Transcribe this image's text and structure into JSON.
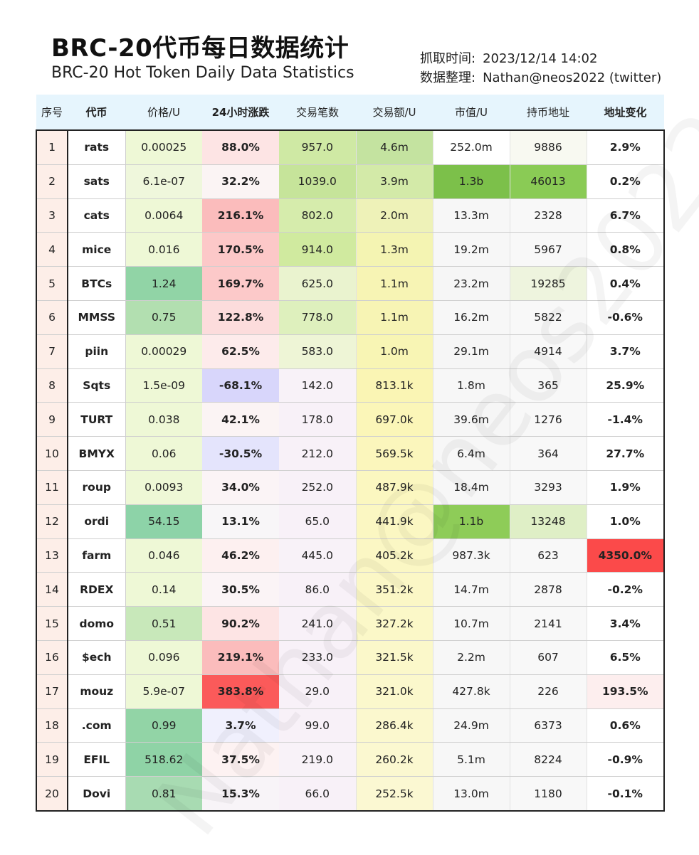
{
  "header": {
    "title_cn": "BRC-20代币每日数据统计",
    "title_en": "BRC-20 Hot Token Daily Data Statistics",
    "fetch_label": "抓取时间:",
    "fetch_time": "2023/12/14 14:02",
    "compiled_label": "数据整理:",
    "compiled_by": "Nathan@neos2022 (twitter)"
  },
  "watermark": "Nathan@neos2022",
  "chart_data": {
    "type": "table",
    "columns": [
      "序号",
      "代币",
      "价格/U",
      "24小时涨跌",
      "交易笔数",
      "交易额/U",
      "市值/U",
      "持币地址",
      "地址变化"
    ],
    "rows": [
      [
        "1",
        "rats",
        "0.00025",
        "88.0%",
        "957.0",
        "4.6m",
        "252.0m",
        "9886",
        "2.9%"
      ],
      [
        "2",
        "sats",
        "6.1e-07",
        "32.2%",
        "1039.0",
        "3.9m",
        "1.3b",
        "46013",
        "0.2%"
      ],
      [
        "3",
        "cats",
        "0.0064",
        "216.1%",
        "802.0",
        "2.0m",
        "13.3m",
        "2328",
        "6.7%"
      ],
      [
        "4",
        "mice",
        "0.016",
        "170.5%",
        "914.0",
        "1.3m",
        "19.2m",
        "5967",
        "0.8%"
      ],
      [
        "5",
        "BTCs",
        "1.24",
        "169.7%",
        "625.0",
        "1.1m",
        "23.2m",
        "19285",
        "0.4%"
      ],
      [
        "6",
        "MMSS",
        "0.75",
        "122.8%",
        "778.0",
        "1.1m",
        "16.2m",
        "5822",
        "-0.6%"
      ],
      [
        "7",
        "piin",
        "0.00029",
        "62.5%",
        "583.0",
        "1.0m",
        "29.1m",
        "4914",
        "3.7%"
      ],
      [
        "8",
        "Sqts",
        "1.5e-09",
        "-68.1%",
        "142.0",
        "813.1k",
        "1.8m",
        "365",
        "25.9%"
      ],
      [
        "9",
        "TURT",
        "0.038",
        "42.1%",
        "178.0",
        "697.0k",
        "39.6m",
        "1276",
        "-1.4%"
      ],
      [
        "10",
        "BMYX",
        "0.06",
        "-30.5%",
        "212.0",
        "569.5k",
        "6.4m",
        "364",
        "27.7%"
      ],
      [
        "11",
        "roup",
        "0.0093",
        "34.0%",
        "252.0",
        "487.9k",
        "18.4m",
        "3293",
        "1.9%"
      ],
      [
        "12",
        "ordi",
        "54.15",
        "13.1%",
        "65.0",
        "441.9k",
        "1.1b",
        "13248",
        "1.0%"
      ],
      [
        "13",
        "farm",
        "0.046",
        "46.2%",
        "445.0",
        "405.2k",
        "987.3k",
        "623",
        "4350.0%"
      ],
      [
        "14",
        "RDEX",
        "0.14",
        "30.5%",
        "86.0",
        "351.2k",
        "14.7m",
        "2878",
        "-0.2%"
      ],
      [
        "15",
        "domo",
        "0.51",
        "90.2%",
        "241.0",
        "327.2k",
        "10.7m",
        "2141",
        "3.4%"
      ],
      [
        "16",
        "$ech",
        "0.096",
        "219.1%",
        "233.0",
        "321.5k",
        "2.2m",
        "607",
        "6.5%"
      ],
      [
        "17",
        "mouz",
        "5.9e-07",
        "383.8%",
        "29.0",
        "321.0k",
        "427.8k",
        "226",
        "193.5%"
      ],
      [
        "18",
        ".com",
        "0.99",
        "3.7%",
        "99.0",
        "286.4k",
        "24.9m",
        "6373",
        "0.6%"
      ],
      [
        "19",
        "EFIL",
        "518.62",
        "37.5%",
        "219.0",
        "260.2k",
        "5.1m",
        "8224",
        "-0.9%"
      ],
      [
        "20",
        "Dovi",
        "0.81",
        "15.3%",
        "66.0",
        "252.5k",
        "13.0m",
        "1180",
        "-0.1%"
      ]
    ],
    "cell_colors": [
      [
        "#fdeee8",
        "#ffffff",
        "#eef8d6",
        "#fde4e4",
        "#cfe9a4",
        "#c4e3a0",
        "#ffffff",
        "#f8f9f1",
        "#ffffff"
      ],
      [
        "#fdeee8",
        "#ffffff",
        "#eff7dc",
        "#fbf4f4",
        "#c6e49a",
        "#d3eaa8",
        "#7cc04a",
        "#8acb55",
        "#ffffff"
      ],
      [
        "#fdeee8",
        "#ffffff",
        "#eef8d6",
        "#fbbcbc",
        "#d6ecac",
        "#eef2b8",
        "#f7f7f7",
        "#f8f8f8",
        "#ffffff"
      ],
      [
        "#fdeee8",
        "#ffffff",
        "#eef8d6",
        "#fcc8c8",
        "#d0ea9f",
        "#f4f4b2",
        "#f7f7f7",
        "#f8f8f8",
        "#ffffff"
      ],
      [
        "#fdeee8",
        "#ffffff",
        "#91d4a6",
        "#fcc9c9",
        "#eaf3cf",
        "#f7f4b4",
        "#f6f6f6",
        "#eef4de",
        "#ffffff"
      ],
      [
        "#fdeee8",
        "#ffffff",
        "#b2dfb0",
        "#fcdcdc",
        "#def0bd",
        "#f7f4b4",
        "#f7f7f7",
        "#f8f8f8",
        "#ffffff"
      ],
      [
        "#fdeee8",
        "#ffffff",
        "#eef8d6",
        "#fdebeb",
        "#eef5d6",
        "#f8f5b4",
        "#f6f6f6",
        "#f8f8f8",
        "#ffffff"
      ],
      [
        "#fdeee8",
        "#ffffff",
        "#eef8d6",
        "#d8d6fb",
        "#f8f2f8",
        "#faf5b4",
        "#f7f7f7",
        "#f8f8f8",
        "#ffffff"
      ],
      [
        "#fdeee8",
        "#ffffff",
        "#eef8d6",
        "#fbf4f4",
        "#f8f1f8",
        "#fbf6b8",
        "#f6f6f6",
        "#f8f8f8",
        "#ffffff"
      ],
      [
        "#fdeee8",
        "#ffffff",
        "#eef8d6",
        "#e4e4fc",
        "#f8f1f8",
        "#fbf6bc",
        "#f7f7f7",
        "#f8f8f8",
        "#ffffff"
      ],
      [
        "#fdeee8",
        "#ffffff",
        "#eef8d6",
        "#fbf4f6",
        "#f8f1f8",
        "#fbf7c0",
        "#f7f7f7",
        "#f8f8f8",
        "#ffffff"
      ],
      [
        "#fdeee8",
        "#ffffff",
        "#8dd3a8",
        "#f8f6f8",
        "#f8f1f8",
        "#fbf7c2",
        "#8ecc58",
        "#dfefc6",
        "#ffffff"
      ],
      [
        "#fdeee8",
        "#ffffff",
        "#eef8d6",
        "#fdf0f0",
        "#f8f2f8",
        "#fbf7c4",
        "#f7f7f7",
        "#f8f8f8",
        "#fb4a4a"
      ],
      [
        "#fdeee8",
        "#ffffff",
        "#eef8d6",
        "#fbf4f6",
        "#f8f1f8",
        "#fbf7c6",
        "#f7f7f7",
        "#f8f8f8",
        "#ffffff"
      ],
      [
        "#fdeee8",
        "#ffffff",
        "#c8e8ba",
        "#fde4e4",
        "#f8f1f8",
        "#fbf8c8",
        "#f7f7f7",
        "#f8f8f8",
        "#ffffff"
      ],
      [
        "#fdeee8",
        "#ffffff",
        "#eef8d6",
        "#fbbcbc",
        "#f8f1f8",
        "#fbf8ca",
        "#f7f7f7",
        "#f8f8f8",
        "#ffffff"
      ],
      [
        "#fdeee8",
        "#ffffff",
        "#eef8d6",
        "#fb5a5a",
        "#f8f1f8",
        "#fbf8cc",
        "#f7f7f7",
        "#f8f8f8",
        "#fdeeee"
      ],
      [
        "#fdeee8",
        "#ffffff",
        "#92d4a6",
        "#f0f0fd",
        "#f8f1f8",
        "#fbf8ce",
        "#f7f7f7",
        "#f8f8f8",
        "#ffffff"
      ],
      [
        "#fdeee8",
        "#ffffff",
        "#8fd3a6",
        "#fdf2f2",
        "#f8f2f8",
        "#fbf8d0",
        "#f7f7f7",
        "#f8f8f8",
        "#ffffff"
      ],
      [
        "#fdeee8",
        "#ffffff",
        "#a8dbb2",
        "#f8f4f8",
        "#f8f1f8",
        "#fbf8d2",
        "#f7f7f7",
        "#f8f8f8",
        "#ffffff"
      ]
    ]
  }
}
